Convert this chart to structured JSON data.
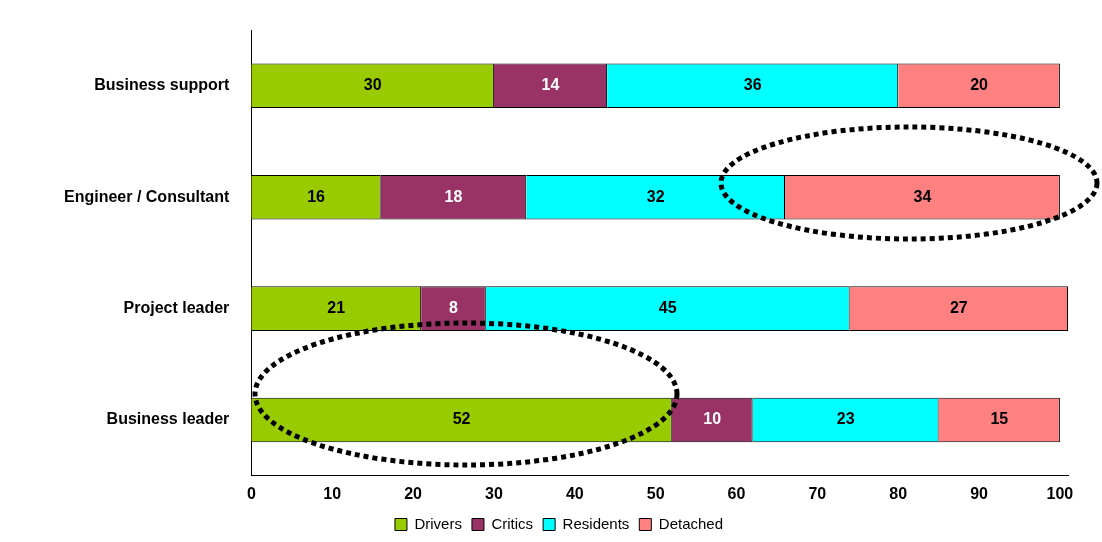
{
  "chart_data": {
    "type": "bar",
    "orientation": "horizontal",
    "stacked": true,
    "categories": [
      "Business support",
      "Engineer / Consultant",
      "Project leader",
      "Business leader"
    ],
    "series": [
      {
        "name": "Drivers",
        "color": "#99cc00",
        "values": [
          30,
          16,
          21,
          52
        ]
      },
      {
        "name": "Critics",
        "color": "#993366",
        "values": [
          14,
          18,
          8,
          10
        ]
      },
      {
        "name": "Residents",
        "color": "#00ffff",
        "values": [
          36,
          32,
          45,
          23
        ]
      },
      {
        "name": "Detached",
        "color": "#ff8080",
        "values": [
          20,
          34,
          27,
          15
        ]
      }
    ],
    "xlim": [
      0,
      101
    ],
    "xticks": [
      0,
      10,
      20,
      30,
      40,
      50,
      60,
      70,
      80,
      90,
      100
    ],
    "grid": false,
    "legend": "bottom",
    "data_labels": true
  }
}
